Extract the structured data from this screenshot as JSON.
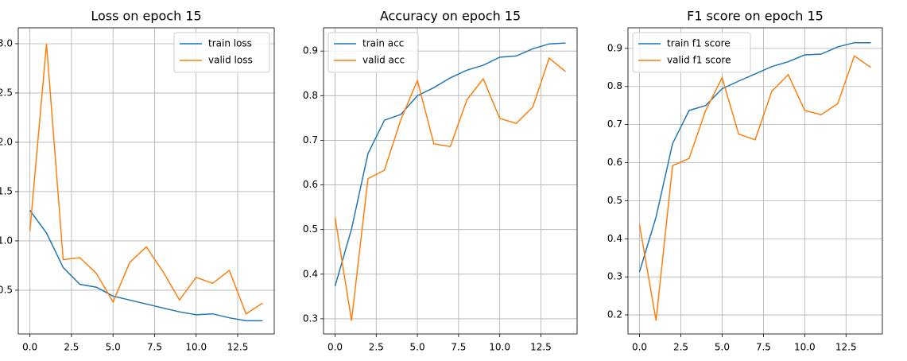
{
  "chart_data": [
    {
      "type": "line",
      "title": "Loss on epoch 15",
      "legend": "upper right",
      "grid": true,
      "x": [
        0,
        1,
        2,
        3,
        4,
        5,
        6,
        7,
        8,
        9,
        10,
        11,
        12,
        13,
        14
      ],
      "series": [
        {
          "name": "train loss",
          "color": "#1f77b4",
          "values": [
            1.31,
            1.08,
            0.73,
            0.56,
            0.53,
            0.44,
            0.4,
            0.36,
            0.32,
            0.28,
            0.25,
            0.26,
            0.22,
            0.19,
            0.19
          ]
        },
        {
          "name": "valid loss",
          "color": "#ff7f0e",
          "values": [
            1.1,
            3.0,
            0.81,
            0.83,
            0.67,
            0.38,
            0.78,
            0.94,
            0.69,
            0.4,
            0.63,
            0.57,
            0.7,
            0.26,
            0.37
          ]
        }
      ],
      "xlim": [
        -0.7,
        14.7
      ],
      "ylim": [
        0.056,
        3.161
      ],
      "xticks": [
        {
          "value": 0,
          "label": "0.0"
        },
        2.5,
        {
          "value": 5,
          "label": "5.0"
        },
        7.5,
        {
          "value": 10,
          "label": "10.0"
        },
        12.5
      ],
      "yticks": [
        0.5,
        {
          "value": 1,
          "label": "1.0"
        },
        1.5,
        {
          "value": 2,
          "label": "2.0"
        },
        2.5,
        {
          "value": 3,
          "label": "3.0"
        }
      ]
    },
    {
      "type": "line",
      "title": "Accuracy on epoch 15",
      "legend": "upper left",
      "grid": true,
      "x": [
        0,
        1,
        2,
        3,
        4,
        5,
        6,
        7,
        8,
        9,
        10,
        11,
        12,
        13,
        14
      ],
      "series": [
        {
          "name": "train acc",
          "color": "#1f77b4",
          "values": [
            0.373,
            0.501,
            0.67,
            0.745,
            0.758,
            0.8,
            0.818,
            0.84,
            0.857,
            0.868,
            0.886,
            0.889,
            0.905,
            0.916,
            0.918
          ]
        },
        {
          "name": "valid acc",
          "color": "#ff7f0e",
          "values": [
            0.527,
            0.296,
            0.614,
            0.633,
            0.747,
            0.834,
            0.692,
            0.686,
            0.79,
            0.838,
            0.749,
            0.738,
            0.774,
            0.884,
            0.854
          ]
        }
      ],
      "xlim": [
        -0.7,
        14.7
      ],
      "ylim": [
        0.266,
        0.952
      ],
      "xticks": [
        {
          "value": 0,
          "label": "0.0"
        },
        2.5,
        {
          "value": 5,
          "label": "5.0"
        },
        7.5,
        {
          "value": 10,
          "label": "10.0"
        },
        12.5
      ],
      "yticks": [
        0.3,
        0.4,
        0.5,
        0.6,
        0.7,
        0.8,
        0.9
      ]
    },
    {
      "type": "line",
      "title": "F1 score on epoch 15",
      "legend": "upper left",
      "grid": true,
      "x": [
        0,
        1,
        2,
        3,
        4,
        5,
        6,
        7,
        8,
        9,
        10,
        11,
        12,
        13,
        14
      ],
      "series": [
        {
          "name": "train f1 score",
          "color": "#1f77b4",
          "values": [
            0.313,
            0.457,
            0.65,
            0.737,
            0.75,
            0.794,
            0.814,
            0.833,
            0.852,
            0.865,
            0.883,
            0.885,
            0.904,
            0.915,
            0.915
          ]
        },
        {
          "name": "valid f1 score",
          "color": "#ff7f0e",
          "values": [
            0.437,
            0.185,
            0.592,
            0.611,
            0.737,
            0.823,
            0.675,
            0.66,
            0.787,
            0.831,
            0.737,
            0.726,
            0.755,
            0.88,
            0.85
          ]
        }
      ],
      "xlim": [
        -0.7,
        14.7
      ],
      "ylim": [
        0.15,
        0.954
      ],
      "xticks": [
        {
          "value": 0,
          "label": "0.0"
        },
        2.5,
        {
          "value": 5,
          "label": "5.0"
        },
        7.5,
        {
          "value": 10,
          "label": "10.0"
        },
        12.5
      ],
      "yticks": [
        0.2,
        0.3,
        0.4,
        0.5,
        0.6,
        0.7,
        0.8,
        0.9
      ]
    }
  ]
}
